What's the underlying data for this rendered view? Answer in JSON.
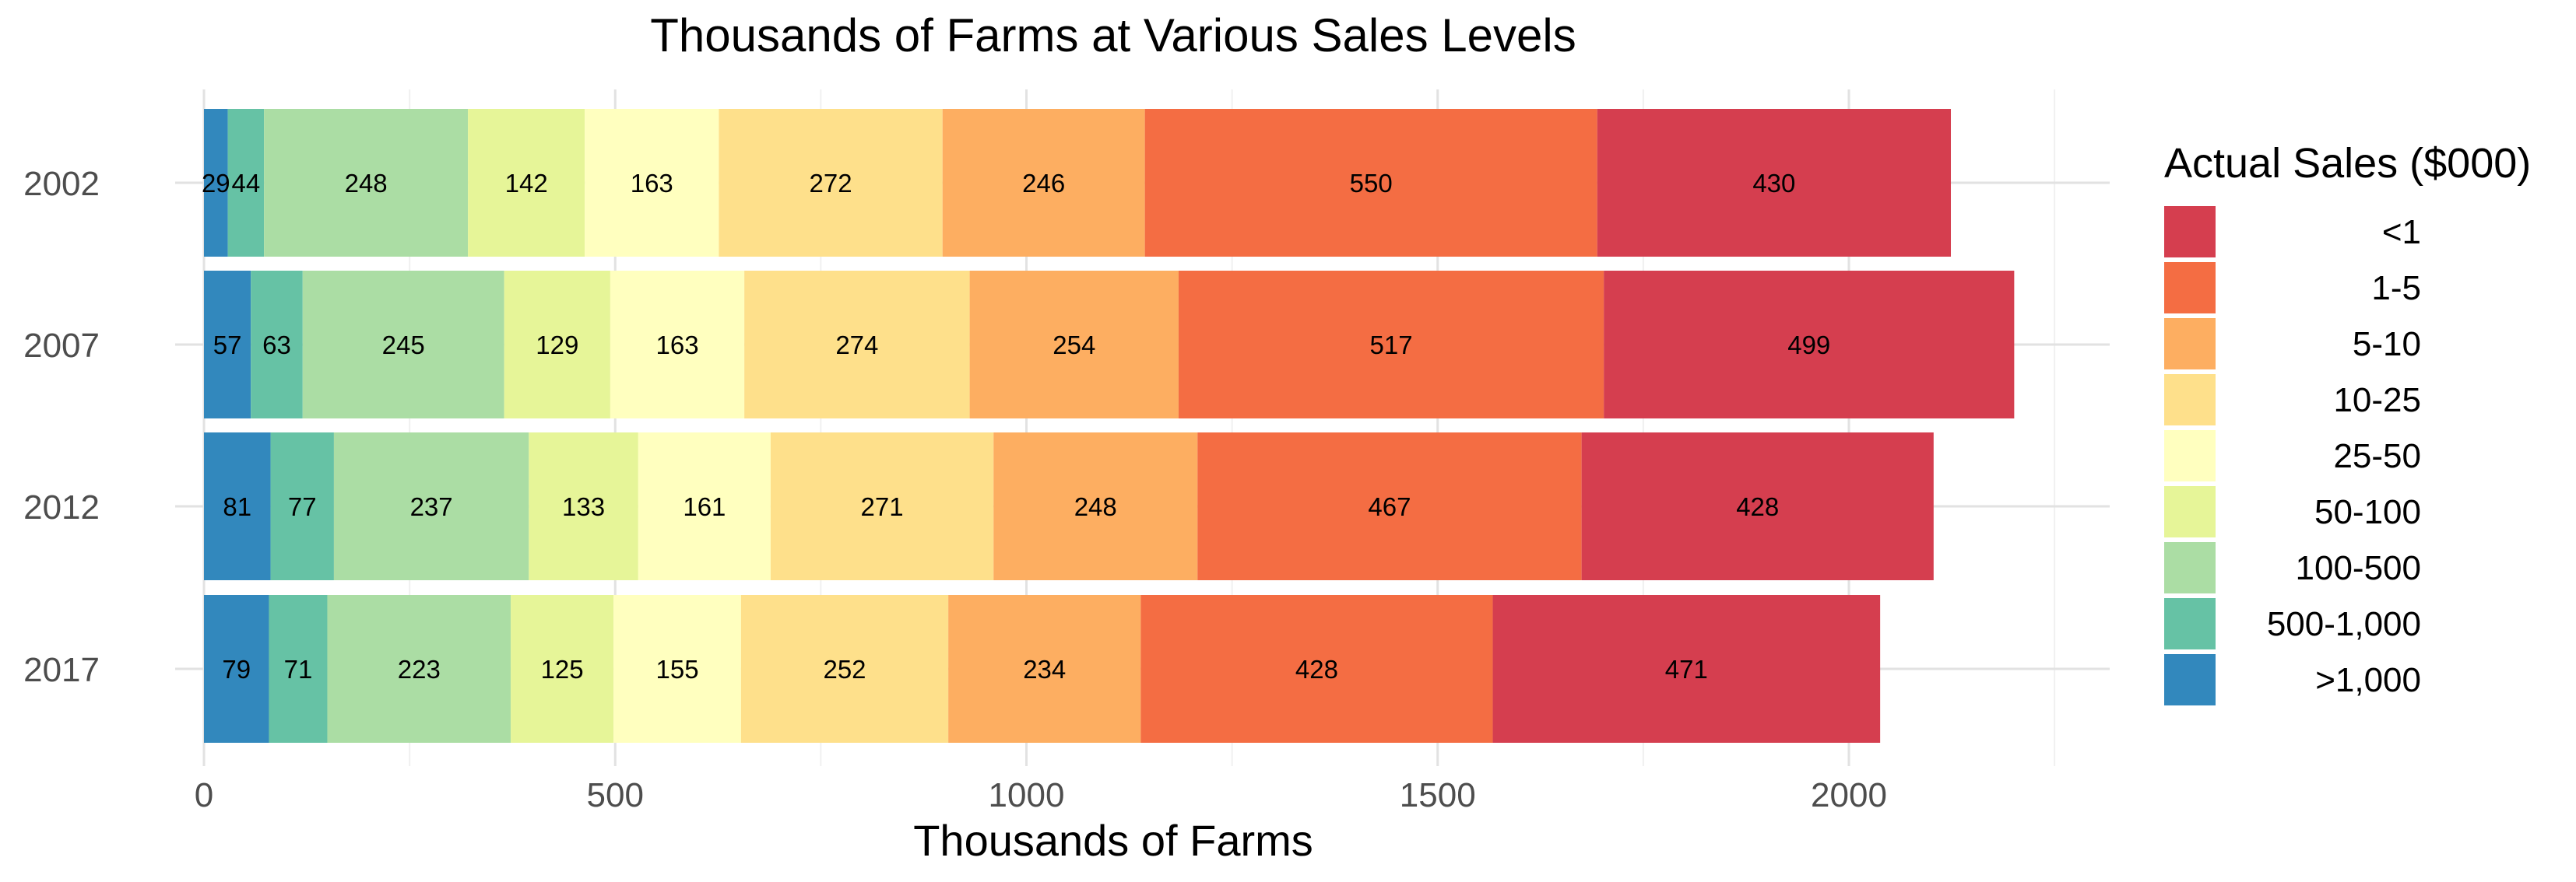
{
  "chart_data": {
    "type": "bar",
    "orientation": "horizontal",
    "stacked": true,
    "title": "Thousands of Farms at Various Sales Levels",
    "xlabel": "Thousands of Farms",
    "ylabel": "",
    "xlim": [
      0,
      2250
    ],
    "xticks": [
      "0",
      "500",
      "1000",
      "1500",
      "2000"
    ],
    "xtick_values": [
      0,
      500,
      1000,
      1500,
      2000
    ],
    "categories": [
      "2002",
      "2007",
      "2012",
      "2017"
    ],
    "legend_title": "Actual Sales ($000)",
    "legend_position": "right",
    "grid": true,
    "series": [
      {
        "name": ">1,000",
        "color": "#3288BD",
        "values": [
          29,
          57,
          81,
          79
        ]
      },
      {
        "name": "500-1,000",
        "color": "#66C2A5",
        "values": [
          44,
          63,
          77,
          71
        ]
      },
      {
        "name": "100-500",
        "color": "#ABDDA4",
        "values": [
          248,
          245,
          237,
          223
        ]
      },
      {
        "name": "50-100",
        "color": "#E6F598",
        "values": [
          142,
          129,
          133,
          125
        ]
      },
      {
        "name": "25-50",
        "color": "#FFFFBF",
        "values": [
          163,
          163,
          161,
          155
        ]
      },
      {
        "name": "10-25",
        "color": "#FEE08B",
        "values": [
          272,
          274,
          271,
          252
        ]
      },
      {
        "name": "5-10",
        "color": "#FDAE61",
        "values": [
          246,
          254,
          248,
          234
        ]
      },
      {
        "name": "1-5",
        "color": "#F46D43",
        "values": [
          550,
          517,
          467,
          428
        ]
      },
      {
        "name": "<1",
        "color": "#D53E4F",
        "values": [
          430,
          499,
          428,
          471
        ]
      }
    ],
    "legend_order": [
      "<1",
      "1-5",
      "5-10",
      "10-25",
      "25-50",
      "50-100",
      "100-500",
      "500-1,000",
      ">1,000"
    ]
  }
}
